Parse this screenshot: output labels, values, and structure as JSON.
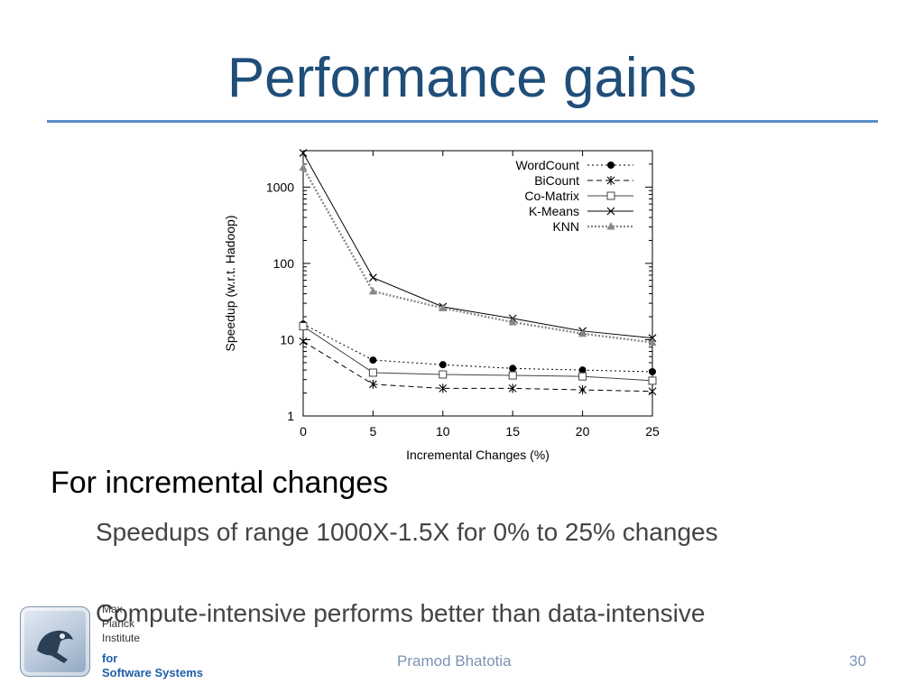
{
  "slide": {
    "title": "Performance gains",
    "bullet_1": "For incremental changes",
    "bullet_2": "Speedups of range 1000X-1.5X  for 0% to 25% changes",
    "bullet_3": "Compute-intensive performs better than data-intensive"
  },
  "footer": {
    "author": "Pramod Bhatotia",
    "page_number": "30",
    "logo_line_1": "Max",
    "logo_line_2": "Planck",
    "logo_line_3": "Institute",
    "logo_line_4": "for",
    "logo_line_5": "Software Systems"
  },
  "colors": {
    "title": "#1f4e79",
    "title_rule": "#5b8dc9",
    "footer_text": "#7d93b2"
  },
  "chart_data": {
    "type": "line",
    "title": "",
    "xlabel": "Incremental Changes (%)",
    "ylabel": "Speedup (w.r.t. Hadoop)",
    "x": [
      0,
      5,
      10,
      15,
      20,
      25
    ],
    "xlim": [
      0,
      25
    ],
    "ylim": [
      1,
      3000
    ],
    "yscale": "log",
    "x_ticks": [
      "0",
      "5",
      "10",
      "15",
      "20",
      "25"
    ],
    "y_ticks": [
      "1",
      "10",
      "100",
      "1000"
    ],
    "y_tick_values": [
      1,
      10,
      100,
      1000
    ],
    "grid": false,
    "legend_position": "top-right",
    "series": [
      {
        "name": "WordCount",
        "values": [
          16,
          5.4,
          4.7,
          4.2,
          4.0,
          3.8
        ],
        "marker": "filled-circle",
        "line": "dotted",
        "color": "#000000"
      },
      {
        "name": "BiCount",
        "values": [
          9.5,
          2.6,
          2.3,
          2.3,
          2.2,
          2.1
        ],
        "marker": "star",
        "line": "dashed",
        "color": "#000000"
      },
      {
        "name": "Co-Matrix",
        "values": [
          15,
          3.7,
          3.5,
          3.4,
          3.3,
          2.9
        ],
        "marker": "open-square",
        "line": "solid",
        "color": "#444444"
      },
      {
        "name": "K-Means",
        "values": [
          2800,
          65,
          27,
          19,
          13,
          10.5
        ],
        "marker": "x",
        "line": "solid",
        "color": "#000000"
      },
      {
        "name": "KNN",
        "values": [
          1800,
          43,
          26,
          17,
          12,
          9.2
        ],
        "marker": "filled-triangle",
        "line": "dotted-thick",
        "color": "#888888"
      }
    ]
  }
}
